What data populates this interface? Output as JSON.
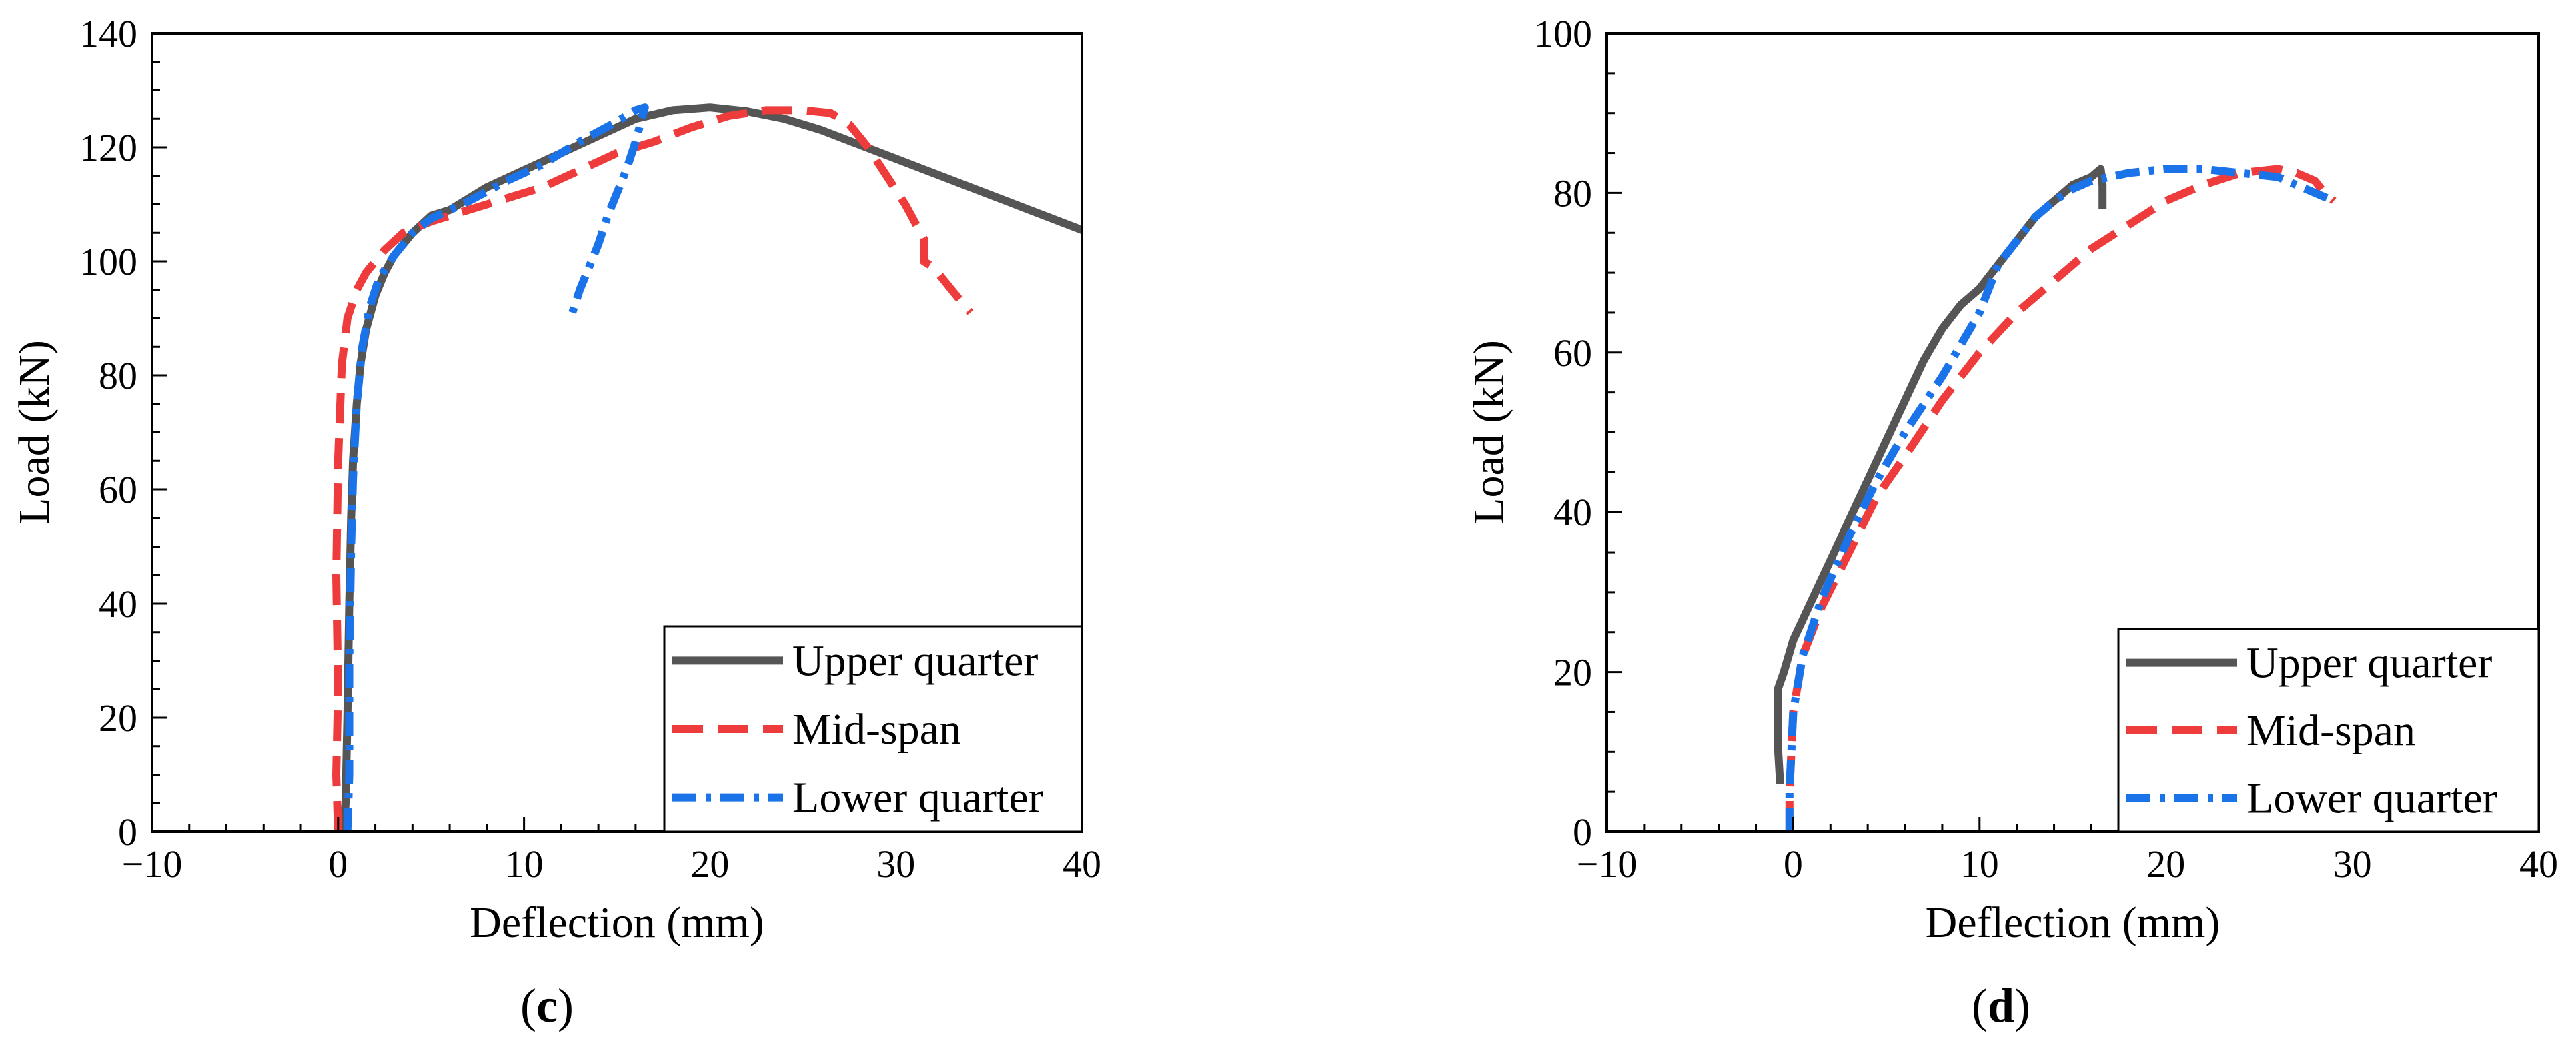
{
  "chart_data": [
    {
      "panel_label": "c",
      "type": "line",
      "xlabel": "Deflection (mm)",
      "ylabel": "Load (kN)",
      "xlim": [
        -10,
        40
      ],
      "ylim": [
        0,
        140
      ],
      "xticks": [
        -10,
        0,
        10,
        20,
        30,
        40
      ],
      "xtick_labels": [
        "−10",
        "0",
        "10",
        "20",
        "30",
        "40"
      ],
      "yticks": [
        0,
        20,
        40,
        60,
        80,
        100,
        120,
        140
      ],
      "ytick_labels": [
        "0",
        "20",
        "40",
        "60",
        "80",
        "100",
        "120",
        "140"
      ],
      "legend_position": "bottom-right",
      "series": [
        {
          "name": "Upper quarter",
          "color": "#555555",
          "style": "solid",
          "x": [
            0.3,
            0.4,
            0.5,
            0.6,
            0.7,
            0.8,
            1.0,
            1.2,
            1.5,
            2.0,
            2.5,
            3.0,
            4.0,
            5.0,
            6.0,
            8.0,
            10.0,
            12.0,
            14.0,
            16.0,
            18.0,
            20.0,
            22.0,
            24.0,
            26.0,
            28.0,
            30.0,
            32.0,
            34.0,
            36.0,
            38.0,
            40.0
          ],
          "y": [
            0,
            5,
            20,
            40,
            55,
            65,
            75,
            82,
            88,
            94,
            98,
            101,
            105,
            108,
            109,
            113,
            116,
            119,
            122,
            125,
            126.5,
            127,
            126.3,
            125,
            123,
            120.5,
            118,
            115.5,
            113,
            110.5,
            108,
            105.5
          ]
        },
        {
          "name": "Mid-span",
          "color": "#ee3b3b",
          "style": "dashed",
          "x": [
            0.0,
            -0.1,
            0.0,
            -0.1,
            0.0,
            0.2,
            0.5,
            1.0,
            1.5,
            2.5,
            3.5,
            5.0,
            7.0,
            9.0,
            11.0,
            13.0,
            15.0,
            17.0,
            19.0,
            21.0,
            23.0,
            25.0,
            26.5,
            27.5,
            28.5,
            29.5,
            30.5,
            31.0,
            31.5,
            31.5,
            32.0,
            32.5,
            33.0,
            33.5,
            34.0
          ],
          "y": [
            0,
            10,
            25,
            45,
            65,
            82,
            90,
            95,
            98,
            102,
            105,
            107,
            109,
            111,
            113,
            116,
            119,
            121,
            123.5,
            125.5,
            126.5,
            126.5,
            126,
            124,
            120,
            115,
            110,
            107,
            104,
            100,
            99,
            97,
            95,
            93,
            91
          ]
        },
        {
          "name": "Lower quarter",
          "color": "#1a73e8",
          "style": "dashdot",
          "x": [
            0.5,
            0.6,
            0.6,
            0.7,
            0.8,
            1.0,
            1.3,
            1.7,
            2.2,
            3.0,
            4.0,
            5.0,
            7.0,
            9.0,
            11.0,
            13.0,
            15.0,
            16.0,
            16.5,
            16.0,
            15.5,
            15.0,
            14.5,
            14.0,
            13.5,
            13.0,
            12.5
          ],
          "y": [
            0,
            10,
            30,
            50,
            62,
            75,
            85,
            92,
            97,
            101,
            105,
            107.5,
            110.5,
            114,
            117,
            121,
            124.5,
            126.5,
            127,
            121,
            116,
            112,
            108,
            103,
            99,
            95,
            90
          ]
        }
      ],
      "caption": "(c)"
    },
    {
      "panel_label": "d",
      "type": "line",
      "xlabel": "Deflection (mm)",
      "ylabel": "Load (kN)",
      "xlim": [
        -10,
        40
      ],
      "ylim": [
        0,
        100
      ],
      "xticks": [
        -10,
        0,
        10,
        20,
        30,
        40
      ],
      "xtick_labels": [
        "−10",
        "0",
        "10",
        "20",
        "30",
        "40"
      ],
      "yticks": [
        0,
        20,
        40,
        60,
        80,
        100
      ],
      "ytick_labels": [
        "0",
        "20",
        "40",
        "60",
        "80",
        "100"
      ],
      "legend_position": "bottom-right",
      "series": [
        {
          "name": "Upper quarter",
          "color": "#555555",
          "style": "solid",
          "x": [
            -0.7,
            -0.8,
            -0.8,
            -0.5,
            0.0,
            1.0,
            2.0,
            3.0,
            4.0,
            5.0,
            6.0,
            7.0,
            8.0,
            9.0,
            10.0,
            11.0,
            12.0,
            13.0,
            14.0,
            15.0,
            16.0,
            16.5,
            16.6,
            16.6
          ],
          "y": [
            6,
            10,
            18,
            20,
            24,
            29,
            34,
            39,
            44,
            49,
            54,
            59,
            63,
            66,
            68,
            71,
            74,
            77,
            79,
            81,
            82,
            83,
            81,
            78
          ]
        },
        {
          "name": "Mid-span",
          "color": "#ee3b3b",
          "style": "dashed",
          "x": [
            -0.2,
            -0.2,
            -0.1,
            0.0,
            0.5,
            1.5,
            3.0,
            4.5,
            6.0,
            8.0,
            10.0,
            12.0,
            14.0,
            16.0,
            18.0,
            20.0,
            22.0,
            24.0,
            26.0,
            27.0,
            28.0,
            28.5,
            29.0
          ],
          "y": [
            0,
            5,
            10,
            15,
            22,
            28,
            35,
            42,
            47,
            54,
            60,
            65,
            69,
            73,
            76,
            79,
            81,
            82.5,
            83,
            82.5,
            81.5,
            80,
            79
          ]
        },
        {
          "name": "Lower quarter",
          "color": "#1a73e8",
          "style": "dashdot",
          "x": [
            -0.2,
            -0.2,
            -0.1,
            0.0,
            0.5,
            1.5,
            3.0,
            4.5,
            6.0,
            8.0,
            10.0,
            11.0,
            12.0,
            13.0,
            14.0,
            15.0,
            16.0,
            18.0,
            20.0,
            22.0,
            24.0,
            26.0,
            27.0,
            28.0,
            29.0
          ],
          "y": [
            0,
            5,
            10,
            15,
            22,
            29,
            37,
            44,
            50,
            57,
            65,
            71,
            74,
            77,
            79,
            80.5,
            81.5,
            82.5,
            83,
            83,
            82.5,
            82,
            81,
            80,
            79
          ]
        }
      ],
      "caption": "(d)"
    }
  ]
}
